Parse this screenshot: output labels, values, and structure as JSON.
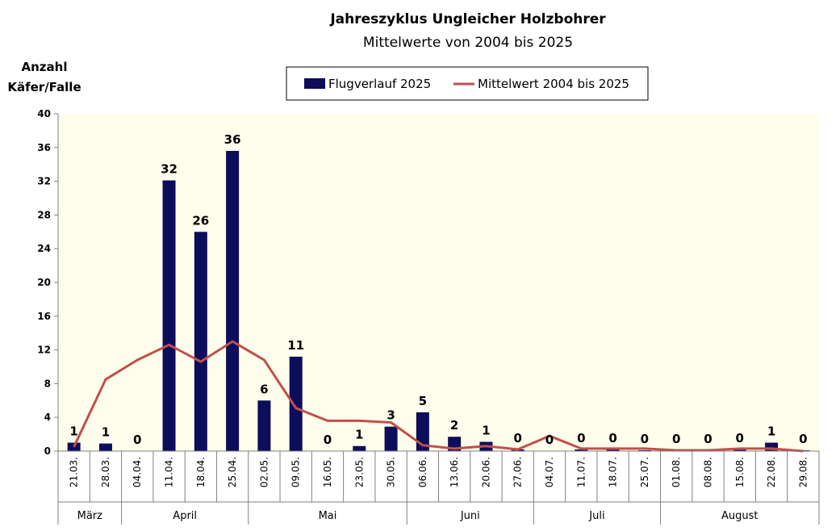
{
  "colors": {
    "bar": "#0d0d5c",
    "line": "#c0504d",
    "plot_bg": "#fffdec",
    "axis": "#808080"
  },
  "chart_data": {
    "type": "bar",
    "title": "Jahreszyklus Ungleicher Holzbohrer",
    "subtitle": "Mittelwerte von 2004 bis 2025",
    "ylabel_line1": "Anzahl",
    "ylabel_line2": "Käfer/Falle",
    "ylim": [
      0,
      40
    ],
    "yticks": [
      0,
      4,
      8,
      12,
      16,
      20,
      24,
      28,
      32,
      36,
      40
    ],
    "grid": false,
    "legend_position": "top-center",
    "categories": [
      "21.03.",
      "28.03.",
      "04.04.",
      "11.04.",
      "18.04.",
      "25.04.",
      "02.05.",
      "09.05.",
      "16.05.",
      "23.05.",
      "30.05.",
      "06.06.",
      "13.06.",
      "20.06.",
      "27.06.",
      "04.07.",
      "11.07.",
      "18.07.",
      "25.07.",
      "01.08.",
      "08.08.",
      "15.08.",
      "22.08.",
      "29.08."
    ],
    "series": [
      {
        "name": "Flugverlauf 2025",
        "type": "bar",
        "values": [
          1.0,
          0.9,
          0,
          32.1,
          26.0,
          35.6,
          6.0,
          11.2,
          0,
          0.6,
          2.9,
          4.6,
          1.7,
          1.1,
          0.2,
          0,
          0.2,
          0.2,
          0.1,
          0.1,
          0.1,
          0.2,
          1.0,
          0.1
        ],
        "data_labels": [
          "1",
          "1",
          "0",
          "32",
          "26",
          "36",
          "6",
          "11",
          "0",
          "1",
          "3",
          "5",
          "2",
          "1",
          "0",
          "0",
          "0",
          "0",
          "0",
          "0",
          "0",
          "0",
          "1",
          "0"
        ]
      },
      {
        "name": "Mittelwert 2004 bis 2025",
        "type": "line",
        "values": [
          0.5,
          8.5,
          10.8,
          12.6,
          10.6,
          13.0,
          10.8,
          5.1,
          3.6,
          3.6,
          3.4,
          0.7,
          0.3,
          0.6,
          0.2,
          1.8,
          0.3,
          0.3,
          0.3,
          0.1,
          0.1,
          0.3,
          0.3,
          0.0
        ]
      }
    ],
    "months": [
      {
        "label": "März",
        "start": 0,
        "end": 2
      },
      {
        "label": "April",
        "start": 2,
        "end": 6
      },
      {
        "label": "Mai",
        "start": 6,
        "end": 11
      },
      {
        "label": "Juni",
        "start": 11,
        "end": 15
      },
      {
        "label": "Juli",
        "start": 15,
        "end": 19
      },
      {
        "label": "August",
        "start": 19,
        "end": 24
      }
    ]
  }
}
